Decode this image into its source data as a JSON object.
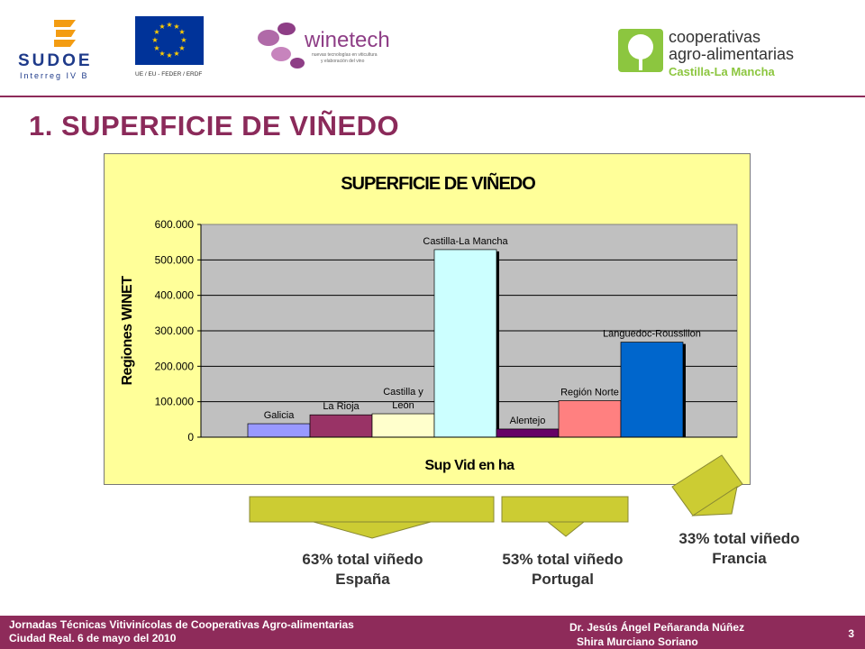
{
  "logos": {
    "sudoe": "SUDOE",
    "sudoe_sub": "Interreg IV B",
    "eu_caption": "UE / EU - FEDER / ERDF",
    "winetech": "winetech",
    "winetech_sub1": "nuevas tecnologías en viticultura",
    "winetech_sub2": "y elaboración del vino",
    "coop_line1": "cooperativas",
    "coop_line2": "agro-alimentarias",
    "coop_line3": "Castilla-La Mancha"
  },
  "slide_title": "1. SUPERFICIE DE VIÑEDO",
  "chart_data": {
    "type": "bar",
    "title": "SUPERFICIE DE VIÑEDO",
    "xlabel": "Sup Vid en ha",
    "ylabel": "Regiones WINET",
    "ylim": [
      0,
      600000
    ],
    "yticks": [
      "0",
      "100.000",
      "200.000",
      "300.000",
      "400.000",
      "500.000",
      "600.000"
    ],
    "grid": true,
    "categories": [
      "Galicia",
      "La Rioja",
      "Castilla y León",
      "Castilla-La Mancha",
      "Alentejo",
      "Región Norte",
      "Languedoc-Roussillon"
    ],
    "label_lines": [
      [
        "Galicia"
      ],
      [
        "La Rioja"
      ],
      [
        "Castilla y",
        "León"
      ],
      [
        "Castilla-La Mancha"
      ],
      [
        "Alentejo"
      ],
      [
        "Región Norte"
      ],
      [
        "Languedoc-Roussillon"
      ]
    ],
    "values": [
      38000,
      63000,
      66000,
      529000,
      23000,
      103000,
      268000
    ],
    "colors": [
      "#9999ff",
      "#993366",
      "#ffffcc",
      "#ccffff",
      "#660066",
      "#ff8080",
      "#0066cc"
    ],
    "background": "#ffff99",
    "plot_background": "#c0c0c0"
  },
  "callouts": {
    "espana_line1": "63% total viñedo",
    "espana_line2": "España",
    "portugal_line1": "53% total viñedo",
    "portugal_line2": "Portugal",
    "francia_line1": "33% total viñedo",
    "francia_line2": "Francia"
  },
  "footer": {
    "left_line1": "Jornadas Técnicas Vitivinícolas de Cooperativas Agro-alimentarias",
    "left_line2": "Ciudad Real. 6 de mayo del 2010",
    "right_line1": "Dr. Jesús Ángel Peñaranda Núñez",
    "right_line2": "Shira Murciano Soriano",
    "page_number": "3"
  },
  "colors": {
    "brand": "#8e2b5a",
    "arrow_fill": "#cccc33",
    "arrow_stroke": "#888833"
  }
}
